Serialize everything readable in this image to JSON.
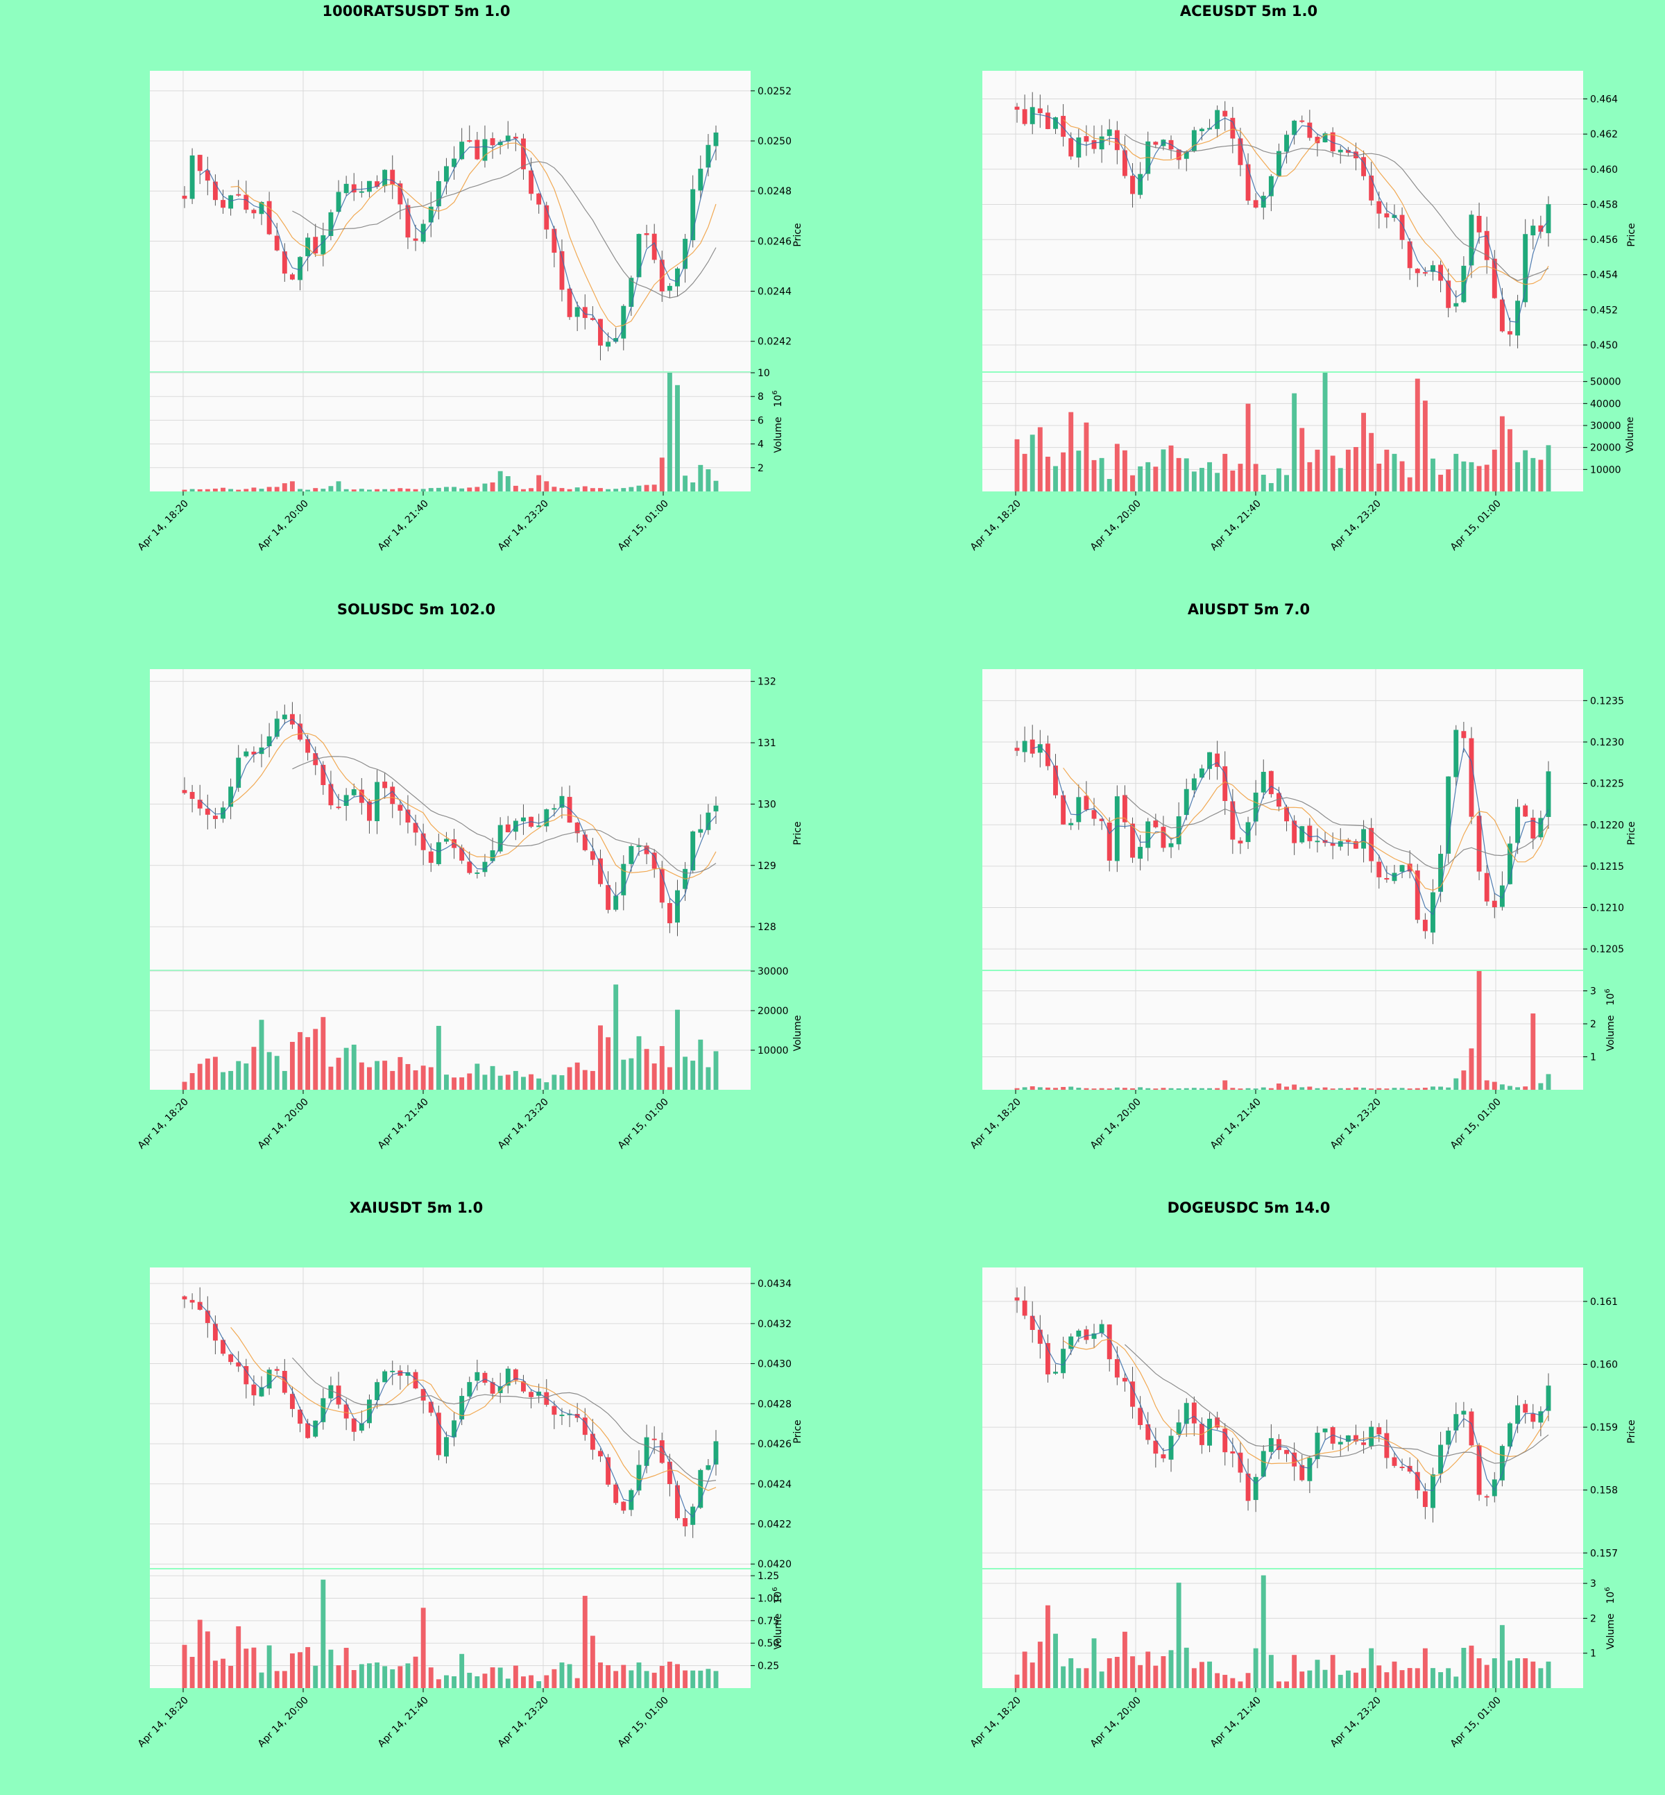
{
  "colors": {
    "background": "#8fffc0",
    "plot_bg": "#fafafa",
    "grid": "#d9d9d9",
    "up": "#1fa97a",
    "down": "#f04452",
    "up_volume": "#52c398",
    "down_volume": "#f06068",
    "ma_fast": "#3c6ea8",
    "ma_mid": "#f0a040",
    "ma_slow": "#808080"
  },
  "chart_data": [
    {
      "type": "candlestick",
      "title": "1000RATSUSDT 5m 1.0",
      "price_label": "Price",
      "volume_label": "Volume",
      "volume_exponent": "6",
      "x_ticks": [
        "Apr 14, 18:20",
        "Apr 14, 20:00",
        "Apr 14, 21:40",
        "Apr 14, 23:20",
        "Apr 15, 01:00"
      ],
      "price_ylim": [
        0.02408,
        0.02528
      ],
      "price_ticks": [
        "0.0242",
        "0.0244",
        "0.0246",
        "0.0248",
        "0.0250",
        "0.0252"
      ],
      "price_tick_values": [
        0.0242,
        0.0244,
        0.0246,
        0.0248,
        0.025,
        0.0252
      ],
      "volume_ylim": [
        0,
        10
      ],
      "volume_ticks": [
        "2",
        "4",
        "6",
        "8",
        "10"
      ],
      "volume_tick_values": [
        2,
        4,
        6,
        8,
        10
      ],
      "close_path": [
        0.02478,
        0.02494,
        0.02488,
        0.02484,
        0.02475,
        0.02472,
        0.02484,
        0.02477,
        0.02467,
        0.02478,
        0.02466,
        0.02458,
        0.02446,
        0.02444,
        0.02454,
        0.02462,
        0.02452,
        0.02468,
        0.02476,
        0.02486,
        0.02482,
        0.02478,
        0.02488,
        0.0248,
        0.02488,
        0.02482,
        0.02474,
        0.02462,
        0.0246,
        0.0247,
        0.02478,
        0.02488,
        0.0249,
        0.02496,
        0.02504,
        0.0249,
        0.025,
        0.02496,
        0.02498,
        0.02504,
        0.025,
        0.02488,
        0.02478,
        0.02472,
        0.02462,
        0.02452,
        0.0243,
        0.02434,
        0.02432,
        0.02428,
        0.0242,
        0.02418,
        0.0242,
        0.02434,
        0.0245,
        0.02468,
        0.02462,
        0.02444,
        0.02438,
        0.02445,
        0.02455,
        0.0248,
        0.0249,
        0.02496,
        0.02504
      ],
      "volume_path": [
        0.15,
        0.2,
        0.15,
        0.2,
        0.25,
        0.3,
        0.2,
        0.15,
        0.2,
        0.3,
        0.2,
        0.4,
        0.3,
        0.9,
        0.2,
        0.15,
        0.25,
        0.2,
        0.4,
        0.9,
        0.2,
        0.15,
        0.2,
        0.15,
        0.2,
        0.15,
        0.2,
        0.25,
        0.2,
        0.2,
        0.2,
        0.3,
        0.2,
        0.4,
        0.2,
        0.3,
        0.4,
        0.7,
        0.2,
        1.8,
        1.2,
        0.5,
        0.2,
        0.25,
        1.2,
        0.8,
        0.4,
        0.3,
        0.2,
        0.3,
        0.4,
        0.2,
        0.3,
        0.2,
        0.2,
        0.3,
        0.4,
        0.5,
        0.6,
        0.5,
        9.2,
        8.8,
        1.4,
        0.5,
        1.8,
        1.9,
        0.8
      ]
    },
    {
      "type": "candlestick",
      "title": "ACEUSDT 5m 1.0",
      "price_label": "Price",
      "volume_label": "Volume",
      "volume_exponent": "",
      "x_ticks": [
        "Apr 14, 18:20",
        "Apr 14, 20:00",
        "Apr 14, 21:40",
        "Apr 14, 23:20",
        "Apr 15, 01:00"
      ],
      "price_ylim": [
        0.4485,
        0.4656
      ],
      "price_ticks": [
        "0.450",
        "0.452",
        "0.454",
        "0.456",
        "0.458",
        "0.460",
        "0.462",
        "0.464"
      ],
      "price_tick_values": [
        0.45,
        0.452,
        0.454,
        0.456,
        0.458,
        0.46,
        0.462,
        0.464
      ],
      "volume_ylim": [
        0,
        54000
      ],
      "volume_ticks": [
        "10000",
        "20000",
        "30000",
        "40000",
        "50000"
      ],
      "volume_tick_values": [
        10000,
        20000,
        30000,
        40000,
        50000
      ],
      "close_path": [
        0.4635,
        0.4628,
        0.4636,
        0.4632,
        0.4624,
        0.463,
        0.4618,
        0.4606,
        0.462,
        0.4612,
        0.4614,
        0.4622,
        0.4624,
        0.4608,
        0.4596,
        0.4586,
        0.4604,
        0.4618,
        0.4612,
        0.4618,
        0.461,
        0.4606,
        0.461,
        0.4632,
        0.4618,
        0.4626,
        0.4636,
        0.4626,
        0.4612,
        0.4594,
        0.4574,
        0.458,
        0.4592,
        0.4604,
        0.4614,
        0.4624,
        0.4632,
        0.4624,
        0.4612,
        0.4622,
        0.4614,
        0.4606,
        0.4614,
        0.4608,
        0.4598,
        0.4586,
        0.4576,
        0.4574,
        0.4576,
        0.457,
        0.4542,
        0.4544,
        0.4542,
        0.455,
        0.454,
        0.4524,
        0.4522,
        0.454,
        0.4576,
        0.4568,
        0.4552,
        0.4532,
        0.4508,
        0.4506,
        0.4522,
        0.456,
        0.457,
        0.4562,
        0.4578
      ],
      "volume_path": [
        20000,
        18000,
        22000,
        28000,
        14000,
        12000,
        8000,
        26000,
        38000,
        14000,
        33000,
        6000,
        16000,
        5000,
        22000,
        18000,
        6000,
        12000,
        14000,
        8000,
        16000,
        22000,
        12000,
        16000,
        10000,
        8000,
        10000,
        14000,
        8000,
        18000,
        10000,
        12000,
        42000,
        12000,
        8000,
        4000,
        6000,
        16000,
        4000,
        47000,
        12000,
        14000,
        20000,
        48000,
        14000,
        8000,
        20000,
        18000,
        30000,
        28000,
        8000,
        20000,
        12000,
        18000,
        10000,
        4000,
        54000,
        30000,
        12000,
        8000,
        10000,
        18000,
        12000,
        14000,
        10000,
        12000,
        20000,
        12000,
        36000,
        16000,
        14000,
        18000,
        16000,
        12000,
        18000
      ]
    },
    {
      "type": "candlestick",
      "title": "SOLUSDC 5m 102.0",
      "price_label": "Price",
      "volume_label": "Volume",
      "volume_exponent": "",
      "x_ticks": [
        "Apr 14, 18:20",
        "Apr 14, 20:00",
        "Apr 14, 21:40",
        "Apr 14, 23:20",
        "Apr 15, 01:00"
      ],
      "price_ylim": [
        127.3,
        132.2
      ],
      "price_ticks": [
        "128",
        "129",
        "130",
        "131",
        "132"
      ],
      "price_tick_values": [
        128,
        129,
        130,
        131,
        132
      ],
      "volume_ylim": [
        0,
        30000
      ],
      "volume_ticks": [
        "10000",
        "20000",
        "30000"
      ],
      "volume_tick_values": [
        10000,
        20000,
        30000
      ],
      "close_path": [
        130.2,
        130.1,
        129.9,
        129.8,
        129.8,
        130.0,
        130.4,
        130.8,
        130.9,
        130.8,
        131.0,
        131.3,
        131.6,
        131.4,
        131.1,
        130.9,
        130.7,
        130.3,
        130.1,
        129.9,
        130.2,
        130.3,
        130.1,
        129.8,
        130.4,
        130.2,
        130.0,
        129.9,
        129.7,
        129.5,
        129.0,
        129.1,
        129.5,
        129.3,
        129.2,
        129.0,
        128.9,
        129.0,
        129.1,
        129.6,
        129.5,
        129.7,
        129.8,
        129.6,
        129.7,
        129.9,
        130.0,
        130.1,
        129.7,
        129.4,
        129.3,
        129.1,
        128.6,
        128.2,
        128.8,
        129.2,
        129.4,
        129.3,
        129.1,
        128.5,
        128.0,
        128.4,
        128.9,
        129.5,
        129.6,
        129.8,
        130.0
      ],
      "volume_path": [
        2000,
        4000,
        6000,
        8000,
        8000,
        4000,
        5000,
        6000,
        7000,
        9000,
        15000,
        10000,
        9000,
        5000,
        11000,
        13000,
        14000,
        13000,
        15000,
        5000,
        8000,
        11000,
        12000,
        7000,
        6000,
        7000,
        6000,
        5000,
        7000,
        6000,
        4000,
        5000,
        6000,
        17000,
        4000,
        3000,
        3000,
        4000,
        6000,
        4000,
        5000,
        3000,
        4000,
        5000,
        3000,
        4000,
        3000,
        2000,
        4000,
        3000,
        6000,
        7000,
        4000,
        5000,
        14000,
        12000,
        28000,
        8000,
        7000,
        11000,
        9000,
        7000,
        10000,
        6000,
        17000,
        8000,
        7000,
        12000,
        6000,
        8000
      ]
    },
    {
      "type": "candlestick",
      "title": "AIUSDT 5m 7.0",
      "price_label": "Price",
      "volume_label": "Volume",
      "volume_exponent": "6",
      "x_ticks": [
        "Apr 14, 18:20",
        "Apr 14, 20:00",
        "Apr 14, 21:40",
        "Apr 14, 23:20",
        "Apr 15, 01:00"
      ],
      "price_ylim": [
        0.12025,
        0.12388
      ],
      "price_ticks": [
        "0.1205",
        "0.1210",
        "0.1215",
        "0.1220",
        "0.1225",
        "0.1230",
        "0.1235"
      ],
      "price_tick_values": [
        0.1205,
        0.121,
        0.1215,
        0.122,
        0.1225,
        0.123,
        0.1235
      ],
      "volume_ylim": [
        0,
        3.6
      ],
      "volume_ticks": [
        "1",
        "2",
        "3"
      ],
      "volume_tick_values": [
        1,
        2,
        3
      ],
      "close_path": [
        0.1229,
        0.123,
        0.1228,
        0.123,
        0.1226,
        0.1222,
        0.1218,
        0.1224,
        0.1222,
        0.122,
        0.1221,
        0.1216,
        0.1224,
        0.122,
        0.1215,
        0.1218,
        0.1222,
        0.1218,
        0.1216,
        0.1221,
        0.1224,
        0.1225,
        0.1227,
        0.1229,
        0.1226,
        0.1222,
        0.1216,
        0.1219,
        0.1223,
        0.1227,
        0.1224,
        0.1222,
        0.122,
        0.1218,
        0.122,
        0.1218,
        0.1219,
        0.1217,
        0.1218,
        0.1219,
        0.1217,
        0.122,
        0.1215,
        0.1213,
        0.1214,
        0.1215,
        0.1216,
        0.1212,
        0.1206,
        0.121,
        0.1214,
        0.1225,
        0.1231,
        0.123,
        0.122,
        0.1213,
        0.121,
        0.121,
        0.1214,
        0.1222,
        0.1222,
        0.1218,
        0.122,
        0.1226
      ],
      "volume_path": [
        0.05,
        0.08,
        0.1,
        0.08,
        0.07,
        0.05,
        0.08,
        0.1,
        0.06,
        0.05,
        0.04,
        0.05,
        0.04,
        0.06,
        0.05,
        0.04,
        0.08,
        0.05,
        0.04,
        0.06,
        0.05,
        0.04,
        0.05,
        0.06,
        0.05,
        0.04,
        0.05,
        0.3,
        0.06,
        0.04,
        0.05,
        0.04,
        0.06,
        0.05,
        0.2,
        0.1,
        0.15,
        0.08,
        0.1,
        0.05,
        0.06,
        0.04,
        0.05,
        0.04,
        0.06,
        0.05,
        0.04,
        0.05,
        0.04,
        0.06,
        0.05,
        0.04,
        0.05,
        0.06,
        0.08,
        0.1,
        0.06,
        0.3,
        0.5,
        1.2,
        3.6,
        0.3,
        0.2,
        0.15,
        0.1,
        0.08,
        0.1,
        1.9,
        0.2,
        0.5
      ]
    },
    {
      "type": "candlestick",
      "title": "XAIUSDT 5m 1.0",
      "price_label": "Price",
      "volume_label": "Volume",
      "volume_exponent": "6",
      "x_ticks": [
        "Apr 14, 18:20",
        "Apr 14, 20:00",
        "Apr 14, 21:40",
        "Apr 14, 23:20",
        "Apr 15, 01:00"
      ],
      "price_ylim": [
        0.04198,
        0.04348
      ],
      "price_ticks": [
        "0.0420",
        "0.0422",
        "0.0424",
        "0.0426",
        "0.0428",
        "0.0430",
        "0.0432",
        "0.0434"
      ],
      "price_tick_values": [
        0.042,
        0.0422,
        0.0424,
        0.0426,
        0.0428,
        0.043,
        0.0432,
        0.0434
      ],
      "volume_ylim": [
        0,
        1.32
      ],
      "volume_ticks": [
        "0.25",
        "0.50",
        "0.75",
        "1.00",
        "1.25"
      ],
      "volume_tick_values": [
        0.25,
        0.5,
        0.75,
        1.0,
        1.25
      ],
      "close_path": [
        0.04332,
        0.04328,
        0.04325,
        0.04318,
        0.04312,
        0.04305,
        0.043,
        0.04296,
        0.04288,
        0.04286,
        0.0429,
        0.04302,
        0.0429,
        0.04282,
        0.04274,
        0.04266,
        0.04262,
        0.04278,
        0.0429,
        0.04284,
        0.04278,
        0.0427,
        0.04264,
        0.04276,
        0.04288,
        0.04296,
        0.04294,
        0.04296,
        0.04298,
        0.0429,
        0.04282,
        0.04276,
        0.04256,
        0.04262,
        0.0427,
        0.04282,
        0.04292,
        0.04294,
        0.0429,
        0.04286,
        0.04292,
        0.04296,
        0.0429,
        0.04282,
        0.04286,
        0.04284,
        0.0428,
        0.04274,
        0.04276,
        0.04278,
        0.04272,
        0.04262,
        0.04254,
        0.04248,
        0.04232,
        0.04224,
        0.04236,
        0.04246,
        0.04264,
        0.04262,
        0.04254,
        0.04242,
        0.04224,
        0.0422,
        0.04228,
        0.04246,
        0.04248,
        0.04262
      ],
      "volume_path": [
        0.42,
        0.22,
        0.8,
        0.5,
        0.62,
        0.3,
        0.28,
        0.26,
        0.7,
        0.3,
        0.5,
        0.3,
        0.15,
        0.5,
        0.15,
        0.2,
        0.22,
        0.45,
        0.3,
        0.48,
        0.2,
        1.27,
        0.45,
        0.2,
        0.3,
        0.45,
        0.14,
        0.28,
        0.26,
        0.3,
        0.24,
        0.16,
        0.22,
        0.2,
        0.26,
        0.16,
        0.94,
        0.3,
        0.15,
        0.1,
        0.15,
        0.1,
        0.4,
        0.12,
        0.2,
        0.1,
        0.14,
        0.2,
        0.24,
        0.1,
        0.15,
        0.3,
        0.1,
        0.15,
        0.08,
        0.15,
        0.2,
        0.12,
        0.3,
        0.28,
        0.06,
        1.08,
        0.55,
        0.3,
        0.42,
        0.15,
        0.2,
        0.26,
        0.15,
        0.3,
        0.2,
        0.18,
        0.18,
        0.26,
        0.24,
        0.24,
        0.2,
        0.15,
        0.26,
        0.2,
        0.18,
        0.2
      ]
    },
    {
      "type": "candlestick",
      "title": "DOGEUSDC 5m 14.0",
      "price_label": "Price",
      "volume_label": "Volume",
      "volume_exponent": "6",
      "x_ticks": [
        "Apr 14, 18:20",
        "Apr 14, 20:00",
        "Apr 14, 21:40",
        "Apr 14, 23:20",
        "Apr 15, 01:00"
      ],
      "price_ylim": [
        0.15676,
        0.16154
      ],
      "price_ticks": [
        "0.157",
        "0.158",
        "0.159",
        "0.160",
        "0.161"
      ],
      "price_tick_values": [
        0.157,
        0.158,
        0.159,
        0.16,
        0.161
      ],
      "volume_ylim": [
        0,
        3.4
      ],
      "volume_ticks": [
        "1",
        "2",
        "3"
      ],
      "volume_tick_values": [
        1,
        2,
        3
      ],
      "close_path": [
        0.161,
        0.1608,
        0.1604,
        0.1602,
        0.1597,
        0.1601,
        0.1604,
        0.1606,
        0.1604,
        0.1604,
        0.1607,
        0.16,
        0.1598,
        0.1596,
        0.1593,
        0.1588,
        0.1587,
        0.1584,
        0.1588,
        0.1591,
        0.1594,
        0.159,
        0.1587,
        0.1592,
        0.1589,
        0.1584,
        0.1586,
        0.1578,
        0.158,
        0.1585,
        0.1588,
        0.1586,
        0.1585,
        0.1583,
        0.1582,
        0.1586,
        0.159,
        0.1588,
        0.1586,
        0.159,
        0.1588,
        0.1586,
        0.159,
        0.1589,
        0.1585,
        0.1583,
        0.1585,
        0.1582,
        0.1576,
        0.158,
        0.1586,
        0.159,
        0.1592,
        0.1593,
        0.1587,
        0.1577,
        0.158,
        0.1584,
        0.159,
        0.1593,
        0.1594,
        0.159,
        0.1592,
        0.1596
      ],
      "volume_path": [
        0.4,
        1.1,
        0.7,
        0.8,
        1.4,
        2.2,
        1.4,
        0.5,
        0.9,
        0.9,
        0.6,
        0.6,
        1.5,
        0.5,
        0.4,
        0.9,
        0.7,
        1.7,
        0.9,
        0.6,
        0.9,
        1.1,
        0.5,
        0.9,
        0.8,
        2.5,
        2.5,
        0.6,
        0.6,
        0.6,
        0.8,
        0.5,
        0.4,
        0.4,
        0.3,
        0.2,
        0.3,
        0.4,
        1.2,
        3.4,
        1.0,
        0.2,
        0.2,
        0.2,
        1.0,
        0.5,
        0.4,
        0.6,
        0.8,
        0.3,
        1.0,
        0.4,
        0.3,
        0.8,
        0.3,
        0.6,
        1.1,
        0.6,
        0.3,
        0.5,
        0.8,
        0.4,
        0.5,
        0.6,
        0.2,
        1.2,
        0.5,
        0.4,
        0.6,
        0.3,
        0.5,
        1.2,
        1.0,
        0.9,
        0.7,
        0.9,
        0.8,
        1.9,
        0.6,
        0.9,
        0.9,
        0.6,
        0.8,
        0.6,
        0.8
      ]
    }
  ]
}
